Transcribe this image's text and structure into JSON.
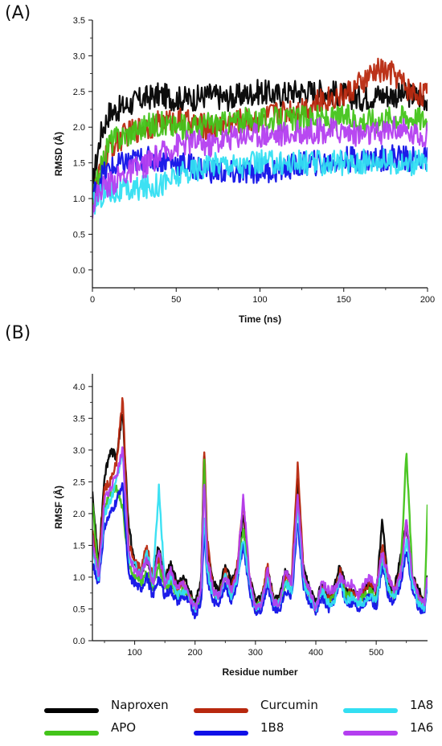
{
  "panels": {
    "a": "(A)",
    "b": "(B)"
  },
  "colors": {
    "Naproxen": "#000000",
    "APO": "#43c41a",
    "Curcumin": "#b8280e",
    "1B8": "#1010e8",
    "1A8": "#33dff2",
    "1A6": "#b43ef0"
  },
  "chart_data": [
    {
      "type": "line",
      "panel": "(A)",
      "title": "",
      "xlabel": "Time (ns)",
      "ylabel": "RMSD (Å)",
      "xlim": [
        0,
        200
      ],
      "ylim": [
        -0.25,
        3.5
      ],
      "x_ticks": [
        "0",
        "50",
        "100",
        "150",
        "200"
      ],
      "y_ticks": [
        "0.0",
        "0.5",
        "1.0",
        "1.5",
        "2.0",
        "2.5",
        "3.0",
        "3.5"
      ],
      "grid": false,
      "x": [
        0,
        5,
        10,
        20,
        30,
        40,
        50,
        60,
        70,
        80,
        90,
        100,
        110,
        120,
        130,
        140,
        150,
        160,
        170,
        180,
        190,
        200
      ],
      "series": [
        {
          "name": "Naproxen",
          "values": [
            1.2,
            1.9,
            2.2,
            2.3,
            2.4,
            2.45,
            2.4,
            2.4,
            2.45,
            2.4,
            2.45,
            2.5,
            2.45,
            2.5,
            2.5,
            2.5,
            2.45,
            2.4,
            2.45,
            2.45,
            2.45,
            2.4
          ]
        },
        {
          "name": "Curcumin",
          "values": [
            1.0,
            1.4,
            1.7,
            1.9,
            2.0,
            2.05,
            2.1,
            2.05,
            2.0,
            2.05,
            2.1,
            2.1,
            2.2,
            2.25,
            2.3,
            2.4,
            2.45,
            2.6,
            2.8,
            2.75,
            2.5,
            2.45
          ]
        },
        {
          "name": "APO",
          "values": [
            1.0,
            1.4,
            1.8,
            1.9,
            2.0,
            2.05,
            2.0,
            2.0,
            2.05,
            2.05,
            2.1,
            2.1,
            2.1,
            2.1,
            2.15,
            2.1,
            2.15,
            2.1,
            2.1,
            2.15,
            2.15,
            2.1
          ]
        },
        {
          "name": "1B8",
          "values": [
            1.0,
            1.3,
            1.4,
            1.5,
            1.55,
            1.55,
            1.5,
            1.45,
            1.4,
            1.35,
            1.35,
            1.4,
            1.4,
            1.45,
            1.5,
            1.5,
            1.55,
            1.55,
            1.55,
            1.6,
            1.55,
            1.55
          ]
        },
        {
          "name": "1A8",
          "values": [
            0.9,
            1.05,
            1.1,
            1.1,
            1.15,
            1.2,
            1.3,
            1.4,
            1.5,
            1.5,
            1.45,
            1.5,
            1.5,
            1.5,
            1.5,
            1.5,
            1.5,
            1.5,
            1.55,
            1.5,
            1.5,
            1.5
          ]
        },
        {
          "name": "1A6",
          "values": [
            0.9,
            1.15,
            1.2,
            1.35,
            1.45,
            1.6,
            1.75,
            1.8,
            1.75,
            1.85,
            1.9,
            1.9,
            1.9,
            1.9,
            1.95,
            1.95,
            1.95,
            1.9,
            1.9,
            2.0,
            1.9,
            1.9
          ]
        }
      ]
    },
    {
      "type": "line",
      "panel": "(B)",
      "title": "",
      "xlabel": "Residue number",
      "ylabel": "RMSF (Å)",
      "xlim": [
        30,
        585
      ],
      "ylim": [
        0.0,
        4.2
      ],
      "x_ticks": [
        "100",
        "200",
        "300",
        "400",
        "500"
      ],
      "y_ticks": [
        "0.0",
        "0.5",
        "1.0",
        "1.5",
        "2.0",
        "2.5",
        "3.0",
        "3.5",
        "4.0"
      ],
      "grid": false,
      "x": [
        30,
        40,
        50,
        60,
        70,
        80,
        90,
        100,
        110,
        120,
        130,
        140,
        150,
        160,
        170,
        180,
        190,
        200,
        210,
        215,
        220,
        230,
        240,
        250,
        260,
        270,
        280,
        290,
        300,
        310,
        320,
        330,
        340,
        350,
        360,
        370,
        380,
        390,
        400,
        410,
        420,
        430,
        440,
        450,
        460,
        470,
        480,
        490,
        500,
        510,
        520,
        530,
        540,
        550,
        560,
        570,
        580,
        585
      ],
      "series": [
        {
          "name": "Naproxen",
          "values": [
            2.3,
            1.2,
            2.6,
            3.0,
            2.9,
            3.6,
            1.8,
            1.2,
            1.0,
            1.3,
            1.0,
            1.5,
            1.0,
            1.2,
            0.9,
            1.0,
            0.8,
            0.6,
            0.9,
            3.0,
            1.4,
            0.9,
            0.8,
            1.2,
            0.9,
            1.1,
            2.0,
            1.0,
            0.6,
            0.7,
            1.1,
            0.7,
            0.7,
            1.1,
            0.9,
            2.5,
            1.1,
            0.8,
            0.6,
            0.9,
            0.7,
            0.8,
            1.2,
            0.8,
            0.8,
            0.7,
            0.8,
            0.9,
            0.7,
            1.9,
            0.9,
            0.8,
            1.3,
            1.8,
            1.0,
            0.8,
            0.6,
            1.0
          ]
        },
        {
          "name": "Curcumin",
          "values": [
            1.8,
            1.1,
            2.4,
            2.5,
            2.8,
            3.8,
            1.5,
            1.3,
            1.1,
            1.5,
            1.0,
            1.3,
            0.9,
            1.1,
            0.8,
            0.9,
            0.7,
            0.5,
            0.8,
            3.1,
            1.6,
            0.8,
            0.7,
            1.1,
            0.8,
            1.2,
            2.2,
            1.0,
            0.5,
            0.6,
            1.2,
            0.6,
            0.6,
            1.0,
            1.0,
            2.8,
            1.0,
            0.7,
            0.5,
            0.8,
            0.7,
            0.7,
            1.1,
            0.7,
            0.8,
            0.7,
            0.8,
            0.9,
            0.8,
            1.5,
            1.0,
            0.8,
            1.1,
            1.9,
            1.0,
            0.7,
            0.6,
            1.0
          ]
        },
        {
          "name": "APO",
          "values": [
            2.2,
            1.0,
            2.1,
            2.3,
            2.4,
            2.1,
            1.2,
            1.0,
            0.9,
            1.1,
            0.8,
            1.2,
            0.8,
            0.9,
            0.7,
            0.8,
            0.7,
            0.5,
            0.7,
            2.9,
            1.2,
            0.7,
            0.7,
            1.0,
            0.7,
            1.0,
            1.8,
            0.9,
            0.5,
            0.6,
            1.0,
            0.6,
            0.6,
            0.9,
            0.8,
            2.2,
            0.9,
            0.7,
            0.5,
            0.8,
            0.6,
            0.7,
            1.0,
            0.7,
            0.7,
            0.6,
            0.7,
            0.8,
            0.6,
            1.3,
            0.8,
            0.7,
            1.0,
            3.0,
            1.0,
            0.6,
            0.6,
            2.1
          ]
        },
        {
          "name": "1B8",
          "values": [
            1.2,
            0.9,
            1.8,
            2.0,
            2.2,
            2.5,
            1.0,
            0.9,
            0.8,
            1.0,
            0.7,
            1.0,
            0.7,
            0.8,
            0.6,
            0.7,
            0.6,
            0.4,
            0.6,
            1.8,
            1.0,
            0.6,
            0.6,
            0.9,
            0.6,
            0.9,
            1.5,
            0.8,
            0.45,
            0.5,
            0.9,
            0.5,
            0.5,
            0.8,
            0.7,
            1.9,
            0.8,
            0.6,
            0.45,
            0.7,
            0.5,
            0.6,
            0.9,
            0.6,
            0.6,
            0.5,
            0.6,
            0.7,
            0.5,
            1.2,
            0.7,
            0.6,
            0.9,
            1.4,
            0.8,
            0.5,
            0.5,
            0.9
          ]
        },
        {
          "name": "1A8",
          "values": [
            1.5,
            1.0,
            2.0,
            2.2,
            2.5,
            3.0,
            1.3,
            1.2,
            1.0,
            1.4,
            0.9,
            2.4,
            0.9,
            1.0,
            0.7,
            0.8,
            0.7,
            0.5,
            0.8,
            2.0,
            1.1,
            0.7,
            0.7,
            1.0,
            0.7,
            1.0,
            1.6,
            0.9,
            0.5,
            0.6,
            1.0,
            0.6,
            0.6,
            0.9,
            0.8,
            2.1,
            0.9,
            0.7,
            0.5,
            0.8,
            0.6,
            0.6,
            1.0,
            0.6,
            0.7,
            0.6,
            0.6,
            0.7,
            0.6,
            1.3,
            0.8,
            0.7,
            1.0,
            1.6,
            0.9,
            0.6,
            0.5,
            0.9
          ]
        },
        {
          "name": "1A6",
          "values": [
            1.6,
            1.0,
            2.2,
            2.4,
            2.6,
            3.0,
            1.4,
            1.1,
            1.0,
            1.3,
            0.9,
            1.4,
            0.9,
            1.1,
            0.8,
            0.9,
            0.7,
            0.5,
            0.8,
            2.6,
            1.3,
            0.8,
            0.7,
            1.0,
            0.8,
            1.1,
            2.3,
            1.0,
            0.5,
            0.6,
            1.1,
            0.6,
            0.6,
            1.1,
            0.9,
            2.3,
            1.0,
            0.8,
            0.5,
            0.9,
            0.8,
            0.8,
            1.0,
            0.9,
            0.9,
            0.7,
            0.9,
            1.0,
            0.8,
            1.4,
            1.0,
            0.8,
            1.0,
            1.9,
            1.0,
            0.7,
            0.6,
            1.0
          ]
        }
      ]
    }
  ],
  "legend": [
    {
      "label": "Naproxen",
      "color": "#000000"
    },
    {
      "label": "Curcumin",
      "color": "#b8280e"
    },
    {
      "label": "1A8",
      "color": "#33dff2"
    },
    {
      "label": "APO",
      "color": "#43c41a"
    },
    {
      "label": "1B8",
      "color": "#1010e8"
    },
    {
      "label": "1A6",
      "color": "#b43ef0"
    }
  ]
}
